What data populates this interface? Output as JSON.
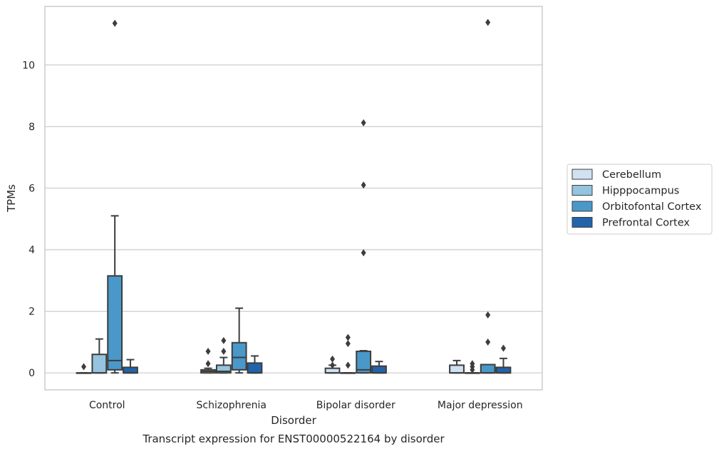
{
  "chart_data": {
    "type": "box",
    "title": "Transcript expression for ENST00000522164 by disorder",
    "xlabel": "Disorder",
    "ylabel": "TPMs",
    "categories": [
      "Control",
      "Schizophrenia",
      "Bipolar disorder",
      "Major depression"
    ],
    "ylim": [
      -0.55,
      11.9
    ],
    "yticks": [
      0,
      2,
      4,
      6,
      8,
      10
    ],
    "grid": true,
    "legend_position": "right",
    "series": [
      {
        "name": "Cerebellum",
        "color": "#d0e1f2",
        "boxes": [
          {
            "q1": 0,
            "median": 0,
            "q3": 0,
            "whislo": 0,
            "whishi": 0,
            "fliers": [
              0.2
            ]
          },
          {
            "q1": 0,
            "median": 0.05,
            "q3": 0.1,
            "whislo": 0,
            "whishi": 0.15,
            "fliers": [
              0.3,
              0.7
            ]
          },
          {
            "q1": 0,
            "median": 0,
            "q3": 0.15,
            "whislo": 0,
            "whishi": 0.25,
            "fliers": [
              0.45,
              0.25
            ]
          },
          {
            "q1": 0,
            "median": 0,
            "q3": 0.25,
            "whislo": 0,
            "whishi": 0.4,
            "fliers": []
          }
        ]
      },
      {
        "name": "Hipppocampus",
        "color": "#94c4df",
        "boxes": [
          {
            "q1": 0,
            "median": 0,
            "q3": 0.6,
            "whislo": 0,
            "whishi": 1.1,
            "fliers": []
          },
          {
            "q1": 0,
            "median": 0.05,
            "q3": 0.25,
            "whislo": 0,
            "whishi": 0.5,
            "fliers": [
              0.7,
              1.05
            ]
          },
          {
            "q1": 0,
            "median": 0,
            "q3": 0,
            "whislo": 0,
            "whishi": 0,
            "fliers": [
              0.25,
              0.95,
              1.15
            ]
          },
          {
            "q1": 0,
            "median": 0,
            "q3": 0,
            "whislo": 0,
            "whishi": 0,
            "fliers": [
              0.1,
              0.2,
              0.3
            ]
          }
        ]
      },
      {
        "name": "Orbitofontal Cortex",
        "color": "#4a98c9",
        "boxes": [
          {
            "q1": 0.1,
            "median": 0.4,
            "q3": 3.15,
            "whislo": 0,
            "whishi": 5.1,
            "fliers": [
              11.35
            ]
          },
          {
            "q1": 0.1,
            "median": 0.5,
            "q3": 0.98,
            "whislo": 0,
            "whishi": 2.1,
            "fliers": []
          },
          {
            "q1": 0,
            "median": 0.1,
            "q3": 0.7,
            "whislo": 0,
            "whishi": 0.72,
            "fliers": [
              3.9,
              6.1,
              8.12
            ]
          },
          {
            "q1": 0,
            "median": 0,
            "q3": 0.27,
            "whislo": 0,
            "whishi": 0.27,
            "fliers": [
              1.0,
              1.88,
              11.38
            ]
          }
        ]
      },
      {
        "name": "Prefrontal Cortex",
        "color": "#2164ab",
        "boxes": [
          {
            "q1": 0,
            "median": 0,
            "q3": 0.18,
            "whislo": 0,
            "whishi": 0.43,
            "fliers": []
          },
          {
            "q1": 0,
            "median": 0,
            "q3": 0.32,
            "whislo": 0,
            "whishi": 0.55,
            "fliers": []
          },
          {
            "q1": 0,
            "median": 0,
            "q3": 0.22,
            "whislo": 0,
            "whishi": 0.37,
            "fliers": []
          },
          {
            "q1": 0,
            "median": 0,
            "q3": 0.18,
            "whislo": 0,
            "whishi": 0.47,
            "fliers": [
              0.8
            ]
          }
        ]
      }
    ]
  }
}
